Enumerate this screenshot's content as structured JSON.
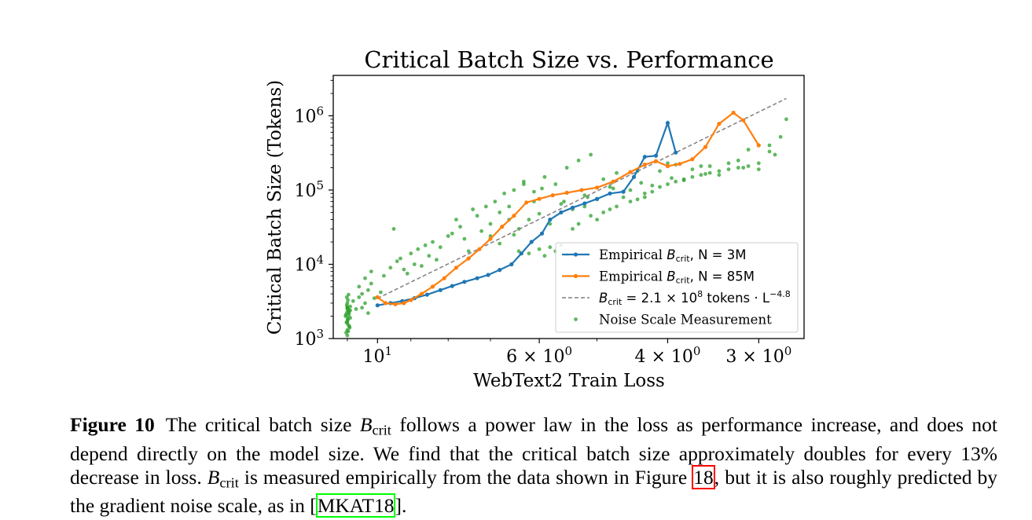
{
  "chart_data": {
    "type": "scatter",
    "title": "Critical Batch Size vs. Performance",
    "xlabel": "WebText2 Train Loss",
    "ylabel": "Critical Batch Size (Tokens)",
    "x_scale": "log",
    "x_reversed": true,
    "y_scale": "log",
    "xlim": [
      11.5,
      2.6
    ],
    "ylim": [
      1000,
      3500000
    ],
    "x_ticks": [
      {
        "value": 10,
        "base": "10",
        "exp": "1"
      },
      {
        "value": 6,
        "base": "6 × 10",
        "exp": "0"
      },
      {
        "value": 4,
        "base": "4 × 10",
        "exp": "0"
      },
      {
        "value": 3,
        "base": "3 × 10",
        "exp": "0"
      }
    ],
    "y_ticks": [
      {
        "value": 1000,
        "base": "10",
        "exp": "3"
      },
      {
        "value": 10000,
        "base": "10",
        "exp": "4"
      },
      {
        "value": 100000,
        "base": "10",
        "exp": "5"
      },
      {
        "value": 1000000,
        "base": "10",
        "exp": "6"
      }
    ],
    "legend_position": "lower-right",
    "grid": false,
    "series": [
      {
        "name": "Empirical B_crit, N = 3M",
        "legend_text": "Empirical",
        "legend_sub": "crit",
        "legend_tail": ", N = 3M",
        "color": "#1f77b4",
        "style": "line-marker",
        "x": [
          10.0,
          9.6,
          9.25,
          8.9,
          8.55,
          8.2,
          7.9,
          7.6,
          7.3,
          7.05,
          6.8,
          6.55,
          6.35,
          6.15,
          5.95,
          5.8,
          5.6,
          5.4,
          5.2,
          5.0,
          4.8,
          4.6,
          4.45,
          4.3,
          4.15,
          4.0,
          3.9
        ],
        "y": [
          2800,
          3000,
          3200,
          3500,
          3900,
          4500,
          5100,
          5800,
          6500,
          7200,
          8400,
          10000,
          14000,
          20000,
          26000,
          40000,
          50000,
          58000,
          66000,
          76000,
          90000,
          95000,
          150000,
          280000,
          290000,
          800000,
          320000
        ]
      },
      {
        "name": "Empirical B_crit, N = 85M",
        "legend_text": "Empirical",
        "legend_sub": "crit",
        "legend_tail": ", N = 85M",
        "color": "#ff7f0e",
        "style": "line-marker",
        "x": [
          10.0,
          9.75,
          9.45,
          9.2,
          9.0,
          8.7,
          8.4,
          8.1,
          7.8,
          7.5,
          7.25,
          7.0,
          6.75,
          6.5,
          6.25,
          6.0,
          5.75,
          5.5,
          5.25,
          5.0,
          4.75,
          4.5,
          4.3,
          4.15,
          4.0,
          3.85,
          3.7,
          3.55,
          3.4,
          3.25,
          3.15,
          3.0
        ],
        "y": [
          3600,
          3000,
          2900,
          3000,
          3300,
          4000,
          5000,
          6500,
          9000,
          12000,
          16000,
          22000,
          32000,
          45000,
          68000,
          76000,
          85000,
          92000,
          100000,
          108000,
          130000,
          175000,
          220000,
          245000,
          210000,
          225000,
          260000,
          380000,
          780000,
          1100000,
          870000,
          400000
        ]
      },
      {
        "name": "B_crit = 2.1 × 10^8 tokens · L^-4.8",
        "legend_text": "B",
        "legend_sub": "crit",
        "legend_tail": " = 2.1 × 10",
        "legend_sup1": "8",
        "legend_tail2": " tokens · L",
        "legend_sup2": "−4.8",
        "color": "#7f7f7f",
        "style": "dashed",
        "x": [
          10.0,
          2.75
        ],
        "y": [
          3473,
          1712000
        ]
      },
      {
        "name": "Noise Scale Measurement",
        "legend_text": "Noise Scale Measurement",
        "color": "#2ca02c",
        "style": "scatter",
        "x": [
          11.0,
          11.0,
          10.95,
          11.0,
          10.9,
          11.05,
          10.95,
          11.0,
          10.9,
          11.0,
          10.98,
          11.02,
          10.96,
          11.04,
          10.92,
          11.0,
          10.98,
          11.06,
          10.94,
          10.9,
          11.0,
          11.02,
          10.97,
          10.93,
          11.03,
          10.99,
          10.95,
          11.01,
          10.96,
          11.0,
          10.8,
          10.7,
          10.6,
          10.5,
          10.4,
          10.3,
          10.2,
          10.5,
          10.3,
          10.1,
          9.9,
          10.6,
          10.4,
          10.2,
          9.8,
          9.6,
          9.4,
          9.2,
          9.5,
          9.3,
          9.1,
          8.9,
          8.7,
          8.5,
          8.3,
          9.0,
          8.8,
          8.6,
          8.4,
          8.2,
          8.0,
          7.8,
          7.6,
          7.4,
          7.2,
          7.0,
          7.9,
          7.7,
          7.5,
          7.3,
          7.1,
          6.9,
          6.7,
          6.5,
          6.3,
          6.1,
          6.8,
          6.6,
          6.4,
          6.2,
          6.0,
          5.9,
          5.8,
          5.7,
          5.6,
          5.5,
          5.4,
          5.3,
          5.2,
          5.1,
          5.0,
          4.9,
          4.8,
          4.7,
          4.6,
          4.5,
          4.4,
          4.3,
          4.2,
          4.1,
          4.0,
          3.9,
          3.8,
          3.7,
          3.6,
          3.5,
          3.4,
          3.3,
          3.2,
          3.1,
          3.0,
          2.9,
          2.8,
          2.75,
          6.3,
          6.1,
          5.9,
          5.7,
          5.5,
          5.3,
          5.1,
          4.9,
          4.7,
          4.5,
          4.3,
          4.1,
          3.9,
          3.7,
          3.5,
          3.3,
          3.1,
          2.9,
          6.5,
          6.0,
          5.6,
          5.2,
          4.8,
          4.4,
          4.0,
          3.6,
          3.2,
          2.85,
          6.8,
          6.4,
          6.2,
          5.8,
          5.4,
          5.0,
          4.6,
          4.2,
          3.8,
          3.4,
          3.0,
          7.0,
          6.6,
          5.95,
          5.55,
          5.15,
          4.75,
          4.35,
          3.95,
          3.55,
          3.15
        ],
        "y": [
          1100,
          1300,
          1500,
          1700,
          1900,
          2100,
          2300,
          2500,
          2700,
          3000,
          3300,
          3600,
          3900,
          1200,
          1400,
          1600,
          1800,
          2000,
          2200,
          2400,
          2600,
          2800,
          1250,
          1450,
          1650,
          1850,
          2050,
          2250,
          2450,
          2650,
          3200,
          2500,
          3600,
          4000,
          3000,
          4500,
          5500,
          2600,
          2200,
          3500,
          4200,
          5000,
          6500,
          8000,
          7000,
          9000,
          11000,
          8500,
          30000,
          12000,
          7500,
          10000,
          9500,
          13000,
          11500,
          14000,
          16000,
          18000,
          20000,
          17000,
          24000,
          40000,
          22000,
          55000,
          28000,
          35000,
          26000,
          32000,
          15000,
          45000,
          60000,
          70000,
          90000,
          100000,
          120000,
          70000,
          50000,
          40000,
          15000,
          14000,
          16000,
          13000,
          17000,
          15000,
          18000,
          13500,
          30000,
          35000,
          60000,
          45000,
          40000,
          50000,
          55000,
          60000,
          80000,
          70000,
          75000,
          90000,
          95000,
          110000,
          120000,
          130000,
          140000,
          150000,
          160000,
          170000,
          180000,
          190000,
          200000,
          210000,
          230000,
          400000,
          520000,
          900000,
          130000,
          95000,
          150000,
          120000,
          200000,
          250000,
          300000,
          140000,
          170000,
          100000,
          80000,
          180000,
          220000,
          190000,
          210000,
          230000,
          350000,
          330000,
          25000,
          48000,
          65000,
          85000,
          110000,
          180000,
          230000,
          210000,
          250000,
          300000,
          19000,
          30000,
          40000,
          35000,
          55000,
          75000,
          95000,
          115000,
          135000,
          160000,
          190000,
          24000,
          60000,
          105000,
          70000,
          80000,
          105000,
          125000,
          145000,
          165000,
          200000
        ]
      }
    ]
  },
  "caption": {
    "label": "Figure 10",
    "text_1": "The critical batch size ",
    "b": "B",
    "b_sub": "crit",
    "text_2": " follows a power law in the loss as performance increase, and does not depend directly on the model size. We find that the critical batch size approximately doubles for every 13% decrease in loss. ",
    "text_3": " is measured empirically from the data shown in Figure ",
    "ref_figure": "18",
    "text_4": ", but it is also roughly predicted by the gradient noise scale, as in [",
    "ref_cite": "MKAT18",
    "text_5": "]."
  }
}
